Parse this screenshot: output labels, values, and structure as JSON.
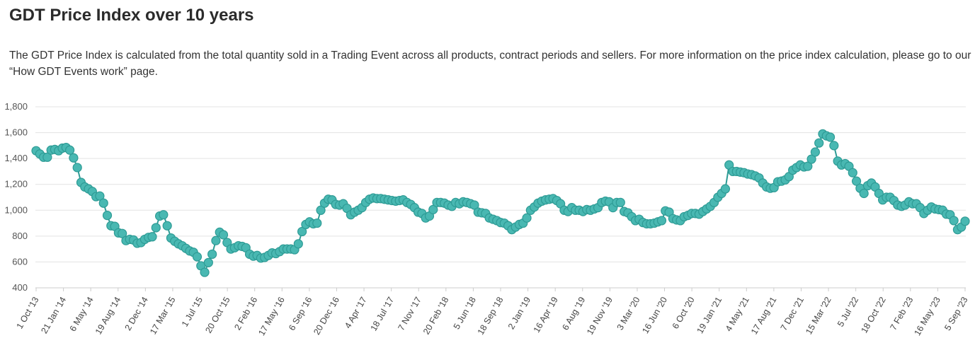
{
  "page": {
    "title": "GDT Price Index over 10 years",
    "description": "The GDT Price Index is calculated from the total quantity sold in a Trading Event across all products, contract periods and sellers. For more information on the price index calculation, please go to our “How GDT Events work” page."
  },
  "colors": {
    "series": "#49b8b2",
    "series_stroke": "#2e9b95",
    "grid": "#e3e3e3",
    "axis": "#cccccc"
  },
  "chart_data": {
    "type": "line",
    "title": "",
    "xlabel": "",
    "ylabel": "",
    "ylim": [
      400,
      1800
    ],
    "yticks": [
      400,
      600,
      800,
      1000,
      1200,
      1400,
      1600,
      1800
    ],
    "ytick_labels": [
      "400",
      "600",
      "800",
      "1,000",
      "1,200",
      "1,400",
      "1,600",
      "1,800"
    ],
    "xtick_labels": [
      "1 Oct '13",
      "21 Jan '14",
      "6 May '14",
      "19 Aug '14",
      "2 Dec '14",
      "17 Mar '15",
      "1 Jul '15",
      "20 Oct '15",
      "2 Feb '16",
      "17 May '16",
      "6 Sep '16",
      "20 Dec '16",
      "4 Apr '17",
      "18 Jul '17",
      "7 Nov '17",
      "20 Feb '18",
      "5 Jun '18",
      "18 Sep '18",
      "2 Jan '19",
      "16 Apr '19",
      "6 Aug '19",
      "19 Nov '19",
      "3 Mar '20",
      "16 Jun '20",
      "6 Oct '20",
      "19 Jan '21",
      "4 May '21",
      "17 Aug '21",
      "7 Dec '21",
      "15 Mar '22",
      "5 Jul '22",
      "18 Oct '22",
      "7 Feb '23",
      "16 May '23",
      "5 Sep '23"
    ],
    "grid": true,
    "legend": "none",
    "series": [
      {
        "values": [
          1460,
          1435,
          1410,
          1410,
          1465,
          1470,
          1460,
          1480,
          1485,
          1465,
          1405,
          1330,
          1215,
          1180,
          1165,
          1145,
          1105,
          1110,
          1055,
          960,
          880,
          875,
          825,
          820,
          765,
          775,
          770,
          745,
          750,
          775,
          790,
          795,
          865,
          955,
          965,
          880,
          785,
          760,
          740,
          725,
          705,
          685,
          675,
          640,
          570,
          520,
          595,
          660,
          765,
          830,
          810,
          750,
          700,
          710,
          725,
          720,
          710,
          660,
          645,
          650,
          630,
          635,
          650,
          670,
          665,
          680,
          700,
          700,
          700,
          695,
          740,
          835,
          890,
          910,
          895,
          900,
          1000,
          1055,
          1085,
          1080,
          1045,
          1040,
          1050,
          1015,
          965,
          985,
          1000,
          1020,
          1060,
          1085,
          1095,
          1090,
          1090,
          1085,
          1080,
          1075,
          1070,
          1075,
          1080,
          1060,
          1045,
          1020,
          985,
          975,
          940,
          955,
          1005,
          1060,
          1060,
          1055,
          1040,
          1030,
          1060,
          1050,
          1065,
          1060,
          1050,
          1040,
          985,
          980,
          975,
          940,
          930,
          920,
          905,
          900,
          880,
          850,
          870,
          890,
          900,
          940,
          1000,
          1025,
          1055,
          1070,
          1080,
          1085,
          1090,
          1075,
          1050,
          1000,
          990,
          1020,
          1000,
          1000,
          990,
          1005,
          1000,
          1010,
          1020,
          1060,
          1070,
          1065,
          1020,
          1060,
          1060,
          990,
          980,
          950,
          920,
          930,
          905,
          895,
          895,
          900,
          910,
          920,
          995,
          985,
          935,
          925,
          920,
          950,
          960,
          975,
          975,
          970,
          990,
          1010,
          1030,
          1060,
          1100,
          1130,
          1165,
          1350,
          1300,
          1300,
          1295,
          1290,
          1280,
          1275,
          1265,
          1250,
          1210,
          1180,
          1170,
          1175,
          1220,
          1225,
          1235,
          1260,
          1310,
          1330,
          1350,
          1335,
          1340,
          1395,
          1450,
          1520,
          1590,
          1575,
          1565,
          1500,
          1380,
          1350,
          1360,
          1340,
          1290,
          1225,
          1170,
          1130,
          1190,
          1210,
          1180,
          1130,
          1080,
          1100,
          1100,
          1075,
          1040,
          1030,
          1040,
          1065,
          1050,
          1050,
          1020,
          975,
          1000,
          1025,
          1010,
          1005,
          1000,
          970,
          965,
          920,
          850,
          870,
          915
        ]
      }
    ]
  }
}
